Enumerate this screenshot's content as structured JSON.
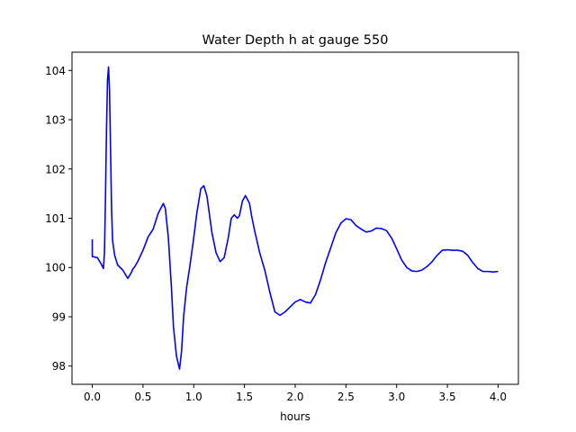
{
  "chart_data": {
    "type": "line",
    "title": "Water Depth h at gauge 550",
    "xlabel": "hours",
    "ylabel": "",
    "xlim": [
      -0.2,
      4.2
    ],
    "ylim": [
      97.63,
      104.37
    ],
    "xticks": [
      0.0,
      0.5,
      1.0,
      1.5,
      2.0,
      2.5,
      3.0,
      3.5,
      4.0
    ],
    "xtick_labels": [
      "0.0",
      "0.5",
      "1.0",
      "1.5",
      "2.0",
      "2.5",
      "3.0",
      "3.5",
      "4.0"
    ],
    "yticks": [
      98,
      99,
      100,
      101,
      102,
      103,
      104
    ],
    "ytick_labels": [
      "98",
      "99",
      "100",
      "101",
      "102",
      "103",
      "104"
    ],
    "grid": false,
    "series": [
      {
        "color": "#0000ff",
        "x": [
          0.0,
          0.0,
          0.01,
          0.05,
          0.08,
          0.11,
          0.12,
          0.13,
          0.14,
          0.15,
          0.16,
          0.17,
          0.18,
          0.19,
          0.2,
          0.22,
          0.25,
          0.3,
          0.35,
          0.38,
          0.4,
          0.42,
          0.45,
          0.5,
          0.55,
          0.6,
          0.65,
          0.7,
          0.72,
          0.75,
          0.78,
          0.8,
          0.83,
          0.86,
          0.88,
          0.9,
          0.93,
          0.96,
          1.0,
          1.03,
          1.07,
          1.1,
          1.13,
          1.15,
          1.18,
          1.22,
          1.26,
          1.3,
          1.34,
          1.37,
          1.4,
          1.43,
          1.45,
          1.48,
          1.51,
          1.55,
          1.57,
          1.6,
          1.65,
          1.7,
          1.75,
          1.8,
          1.85,
          1.9,
          1.95,
          2.0,
          2.05,
          2.1,
          2.15,
          2.2,
          2.25,
          2.3,
          2.35,
          2.4,
          2.45,
          2.5,
          2.55,
          2.6,
          2.65,
          2.7,
          2.75,
          2.8,
          2.85,
          2.9,
          2.95,
          3.0,
          3.05,
          3.1,
          3.15,
          3.2,
          3.25,
          3.3,
          3.35,
          3.4,
          3.45,
          3.5,
          3.55,
          3.6,
          3.65,
          3.7,
          3.75,
          3.8,
          3.85,
          3.9,
          3.95,
          4.0
        ],
        "y": [
          100.57,
          100.22,
          100.22,
          100.2,
          100.1,
          99.98,
          100.3,
          101.4,
          102.8,
          103.8,
          104.07,
          103.6,
          102.4,
          101.2,
          100.55,
          100.25,
          100.05,
          99.95,
          99.78,
          99.88,
          99.97,
          100.02,
          100.13,
          100.35,
          100.62,
          100.78,
          101.1,
          101.3,
          101.2,
          100.6,
          99.6,
          98.8,
          98.2,
          97.94,
          98.3,
          99.0,
          99.6,
          100.0,
          100.6,
          101.1,
          101.6,
          101.66,
          101.45,
          101.15,
          100.7,
          100.3,
          100.12,
          100.2,
          100.6,
          101.0,
          101.07,
          101.0,
          101.05,
          101.35,
          101.46,
          101.3,
          101.05,
          100.75,
          100.3,
          99.95,
          99.5,
          99.1,
          99.03,
          99.1,
          99.2,
          99.3,
          99.35,
          99.3,
          99.28,
          99.45,
          99.75,
          100.1,
          100.4,
          100.7,
          100.9,
          100.99,
          100.97,
          100.85,
          100.78,
          100.72,
          100.74,
          100.8,
          100.79,
          100.75,
          100.6,
          100.38,
          100.15,
          100.0,
          99.93,
          99.92,
          99.95,
          100.02,
          100.12,
          100.25,
          100.35,
          100.36,
          100.35,
          100.35,
          100.33,
          100.25,
          100.1,
          99.98,
          99.92,
          99.92,
          99.91,
          99.92
        ]
      }
    ]
  }
}
